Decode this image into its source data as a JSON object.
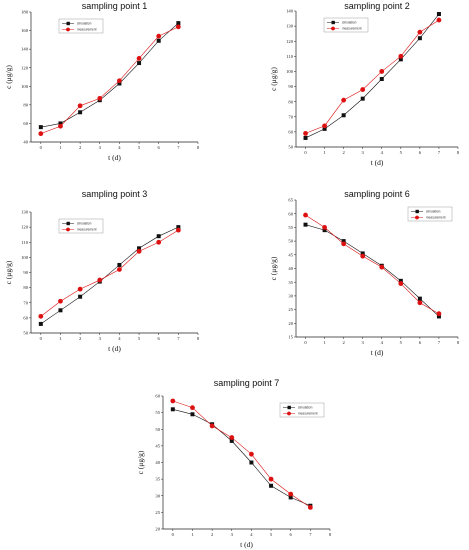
{
  "chart_data": [
    {
      "type": "line",
      "title": "sampling point 1",
      "xlabel": "t (d)",
      "ylabel": "c (μg/g)",
      "xlim": [
        -0.5,
        8
      ],
      "ylim": [
        40,
        180
      ],
      "xticks": [
        "0",
        "1",
        "2",
        "3",
        "4",
        "5",
        "6",
        "7",
        "8"
      ],
      "yticks": [
        "40",
        "60",
        "80",
        "100",
        "120",
        "140",
        "160",
        "180"
      ],
      "legend": "top-left",
      "x": [
        0,
        1,
        2,
        3,
        4,
        5,
        6,
        7
      ],
      "series": [
        {
          "name": "simulation",
          "color": "#111111",
          "marker": "square",
          "values": [
            56,
            60,
            72,
            85,
            103,
            125,
            149,
            168
          ]
        },
        {
          "name": "measurement",
          "color": "#dd1111",
          "marker": "circle",
          "values": [
            49,
            57,
            79,
            87,
            106,
            130,
            154,
            164
          ]
        }
      ]
    },
    {
      "type": "line",
      "title": "sampling point 2",
      "xlabel": "t (d)",
      "ylabel": "c (μg/g)",
      "xlim": [
        -0.5,
        8
      ],
      "ylim": [
        50,
        140
      ],
      "xticks": [
        "0",
        "1",
        "2",
        "3",
        "4",
        "5",
        "6",
        "7",
        "8"
      ],
      "yticks": [
        "50",
        "60",
        "70",
        "80",
        "90",
        "100",
        "110",
        "120",
        "130",
        "140"
      ],
      "legend": "top-left",
      "x": [
        0,
        1,
        2,
        3,
        4,
        5,
        6,
        7
      ],
      "series": [
        {
          "name": "simulation",
          "color": "#111111",
          "marker": "square",
          "values": [
            56,
            62,
            71,
            82,
            95,
            108,
            122,
            138
          ]
        },
        {
          "name": "measurement",
          "color": "#dd1111",
          "marker": "circle",
          "values": [
            59,
            64,
            81,
            88,
            100,
            110,
            126,
            134
          ]
        }
      ]
    },
    {
      "type": "line",
      "title": "sampling point 3",
      "xlabel": "t (d)",
      "ylabel": "c (μg/g)",
      "xlim": [
        -0.5,
        8
      ],
      "ylim": [
        50,
        130
      ],
      "xticks": [
        "0",
        "1",
        "2",
        "3",
        "4",
        "5",
        "6",
        "7",
        "8"
      ],
      "yticks": [
        "50",
        "60",
        "70",
        "80",
        "90",
        "100",
        "110",
        "120",
        "130"
      ],
      "legend": "top-left",
      "x": [
        0,
        1,
        2,
        3,
        4,
        5,
        6,
        7
      ],
      "series": [
        {
          "name": "simulation",
          "color": "#111111",
          "marker": "square",
          "values": [
            56,
            65,
            74,
            84,
            95,
            106,
            114,
            120
          ]
        },
        {
          "name": "measurement",
          "color": "#dd1111",
          "marker": "circle",
          "values": [
            61,
            71,
            79,
            85,
            92,
            104,
            110,
            118
          ]
        }
      ]
    },
    {
      "type": "line",
      "title": "sampling point 6",
      "xlabel": "t (d)",
      "ylabel": "c (μg/g)",
      "xlim": [
        -0.5,
        8
      ],
      "ylim": [
        15,
        65
      ],
      "xticks": [
        "0",
        "1",
        "2",
        "3",
        "4",
        "5",
        "6",
        "7",
        "8"
      ],
      "yticks": [
        "15",
        "20",
        "25",
        "30",
        "35",
        "40",
        "45",
        "50",
        "55",
        "60",
        "65"
      ],
      "legend": "top-right",
      "x": [
        0,
        1,
        2,
        3,
        4,
        5,
        6,
        7
      ],
      "series": [
        {
          "name": "simulation",
          "color": "#111111",
          "marker": "square",
          "values": [
            56,
            54,
            50,
            45.5,
            41,
            35.5,
            29,
            22.5
          ]
        },
        {
          "name": "measurement",
          "color": "#dd1111",
          "marker": "circle",
          "values": [
            59.5,
            55,
            49,
            44.5,
            40.5,
            34.5,
            27.5,
            23.5
          ]
        }
      ]
    },
    {
      "type": "line",
      "title": "sampling point 7",
      "xlabel": "t (d)",
      "ylabel": "c (μg/g)",
      "xlim": [
        -0.5,
        8
      ],
      "ylim": [
        20,
        60
      ],
      "xticks": [
        "0",
        "1",
        "2",
        "3",
        "4",
        "5",
        "6",
        "7",
        "8"
      ],
      "yticks": [
        "20",
        "25",
        "30",
        "35",
        "40",
        "45",
        "50",
        "55",
        "60"
      ],
      "legend": "top-right",
      "x": [
        0,
        1,
        2,
        3,
        4,
        5,
        6,
        7
      ],
      "series": [
        {
          "name": "simulation",
          "color": "#111111",
          "marker": "square",
          "values": [
            56,
            54.5,
            51.5,
            46.5,
            40,
            33,
            29.5,
            27
          ]
        },
        {
          "name": "measurement",
          "color": "#dd1111",
          "marker": "circle",
          "values": [
            58.5,
            56.5,
            51,
            47.5,
            42.5,
            35,
            30.5,
            26.5
          ]
        }
      ]
    }
  ]
}
